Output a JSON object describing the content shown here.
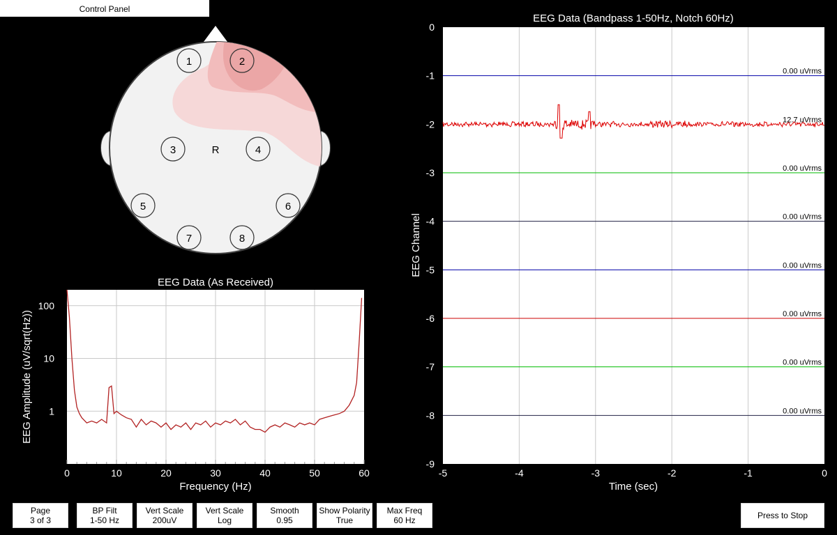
{
  "control_panel": {
    "label": "Control Panel"
  },
  "head_plot": {
    "center_label": "R",
    "electrodes": [
      "1",
      "2",
      "3",
      "4",
      "5",
      "6",
      "7",
      "8"
    ]
  },
  "spectrum_plot": {
    "title": "EEG Data (As Received)",
    "xlabel": "Frequency (Hz)",
    "ylabel": "EEG Amplitude (uV/sqrt(Hz))",
    "x_ticks": [
      "0",
      "10",
      "20",
      "30",
      "40",
      "50",
      "60"
    ],
    "y_ticks": [
      "100",
      "10",
      "1"
    ]
  },
  "timeseries_plot": {
    "title": "EEG Data (Bandpass 1-50Hz, Notch 60Hz)",
    "xlabel": "Time (sec)",
    "ylabel": "EEG Channel",
    "x_ticks": [
      "-5",
      "-4",
      "-3",
      "-2",
      "-1",
      "0"
    ],
    "y_ticks": [
      "0",
      "-1",
      "-2",
      "-3",
      "-4",
      "-5",
      "-6",
      "-7",
      "-8",
      "-9"
    ],
    "channel_labels": [
      "0.00 uVrms",
      "12.7 uVrms",
      "0.00 uVrms",
      "0.00 uVrms",
      "0.00 uVrms",
      "0.00 uVrms",
      "0.00 uVrms",
      "0.00 uVrms"
    ]
  },
  "buttons": [
    {
      "line1": "Page",
      "line2": "3 of 3"
    },
    {
      "line1": "BP Filt",
      "line2": "1-50 Hz"
    },
    {
      "line1": "Vert Scale",
      "line2": "200uV"
    },
    {
      "line1": "Vert Scale",
      "line2": "Log"
    },
    {
      "line1": "Smooth",
      "line2": "0.95"
    },
    {
      "line1": "Show Polarity",
      "line2": "True"
    },
    {
      "line1": "Max Freq",
      "line2": "60 Hz"
    }
  ],
  "stop_button": {
    "label": "Press to Stop"
  },
  "colors": {
    "background": "#000000",
    "trace_red": "#dd0000",
    "spectrum_trace": "#b22222",
    "heat": "#f5c9c9"
  },
  "chart_data": [
    {
      "type": "line",
      "title": "EEG Data (As Received)",
      "xlabel": "Frequency (Hz)",
      "ylabel": "EEG Amplitude (uV/sqrt(Hz))",
      "xlim": [
        0,
        60
      ],
      "ylim": [
        0.1,
        200
      ],
      "yscale": "log",
      "grid": true,
      "x": [
        0,
        0.5,
        1,
        1.5,
        2,
        2.5,
        3,
        4,
        5,
        6,
        7,
        8,
        8.5,
        9,
        9.5,
        10,
        11,
        12,
        13,
        14,
        15,
        16,
        17,
        18,
        19,
        20,
        21,
        22,
        23,
        24,
        25,
        26,
        27,
        28,
        29,
        30,
        31,
        32,
        33,
        34,
        35,
        36,
        37,
        38,
        39,
        40,
        41,
        42,
        43,
        44,
        45,
        46,
        47,
        48,
        49,
        50,
        51,
        52,
        53,
        54,
        55,
        56,
        57,
        58,
        58.5,
        59,
        59.5
      ],
      "series": [
        {
          "values": [
            200,
            60,
            10,
            2.5,
            1.2,
            0.9,
            0.75,
            0.6,
            0.65,
            0.6,
            0.7,
            0.6,
            2.8,
            3.0,
            0.9,
            1.0,
            0.85,
            0.75,
            0.7,
            0.5,
            0.7,
            0.55,
            0.65,
            0.6,
            0.5,
            0.6,
            0.45,
            0.55,
            0.5,
            0.6,
            0.45,
            0.6,
            0.55,
            0.65,
            0.5,
            0.6,
            0.55,
            0.65,
            0.6,
            0.7,
            0.55,
            0.65,
            0.5,
            0.45,
            0.45,
            0.4,
            0.5,
            0.55,
            0.5,
            0.6,
            0.55,
            0.5,
            0.6,
            0.55,
            0.6,
            0.55,
            0.7,
            0.75,
            0.8,
            0.85,
            0.9,
            1.0,
            1.3,
            2.0,
            3.5,
            20,
            140
          ]
        }
      ]
    },
    {
      "type": "line",
      "title": "EEG Data (Bandpass 1-50Hz, Notch 60Hz)",
      "xlabel": "Time (sec)",
      "ylabel": "EEG Channel",
      "xlim": [
        -5,
        0
      ],
      "ylim": [
        -9,
        0
      ],
      "grid": true,
      "series": [
        {
          "name": "0.00 uVrms",
          "baseline": -1,
          "color": "#0000aa"
        },
        {
          "name": "12.7 uVrms",
          "baseline": -2,
          "color": "#dd0000"
        },
        {
          "name": "0.00 uVrms",
          "baseline": -3,
          "color": "#00bb00"
        },
        {
          "name": "0.00 uVrms",
          "baseline": -4,
          "color": "#222244"
        },
        {
          "name": "0.00 uVrms",
          "baseline": -5,
          "color": "#0000aa"
        },
        {
          "name": "0.00 uVrms",
          "baseline": -6,
          "color": "#cc0000"
        },
        {
          "name": "0.00 uVrms",
          "baseline": -7,
          "color": "#00bb00"
        },
        {
          "name": "0.00 uVrms",
          "baseline": -8,
          "color": "#222244"
        }
      ]
    }
  ]
}
